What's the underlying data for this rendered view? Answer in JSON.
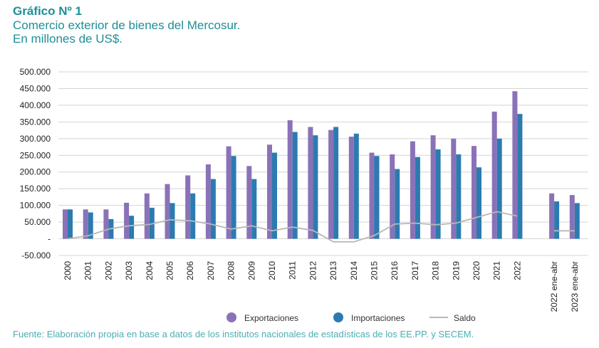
{
  "header": {
    "label": "Gráfico Nº 1",
    "title": "Comercio exterior de bienes del Mercosur.",
    "unit": "En millones de US$."
  },
  "source": "Fuente: Elaboración propia en base a datos de los institutos nacionales de estadísticas de los EE.PP. y SECEM.",
  "colors": {
    "exportaciones": "#8a72b8",
    "importaciones": "#2b7bb0",
    "saldo": "#b8b8b8",
    "grid": "#d4d4d4",
    "text": "#1e8f96"
  },
  "chart_data": {
    "type": "bar",
    "categories": [
      "2000",
      "2001",
      "2002",
      "2003",
      "2004",
      "2005",
      "2006",
      "2007",
      "2008",
      "2009",
      "2010",
      "2011",
      "2012",
      "2013",
      "2014",
      "2015",
      "2016",
      "2017",
      "2018",
      "2019",
      "2020",
      "2021",
      "2022",
      "2022 ene-abr",
      "2023 ene-abr"
    ],
    "gap_after_index": 22,
    "series": [
      {
        "name": "Exportaciones",
        "type": "bar",
        "values": [
          88000,
          88000,
          88000,
          108000,
          136000,
          164000,
          190000,
          223000,
          277000,
          218000,
          282000,
          355000,
          335000,
          326000,
          306000,
          258000,
          253000,
          292000,
          310000,
          300000,
          278000,
          381000,
          442000,
          136000,
          131000
        ]
      },
      {
        "name": "Importaciones",
        "type": "bar",
        "values": [
          88000,
          79000,
          59000,
          69000,
          93000,
          107000,
          136000,
          179000,
          248000,
          179000,
          258000,
          320000,
          310000,
          335000,
          315000,
          248000,
          209000,
          245000,
          268000,
          253000,
          214000,
          300000,
          374000,
          112000,
          107000
        ]
      },
      {
        "name": "Saldo",
        "type": "line",
        "values": [
          0,
          9000,
          29000,
          39000,
          43000,
          57000,
          54000,
          44000,
          29000,
          39000,
          24000,
          35000,
          25000,
          -9000,
          -9000,
          10000,
          44000,
          47000,
          42000,
          47000,
          64000,
          81000,
          68000,
          24000,
          24000
        ]
      }
    ],
    "y_ticks": [
      "500.000",
      "450.000",
      "400.000",
      "350.000",
      "300.000",
      "250.000",
      "200.000",
      "150.000",
      "100.000",
      "50.000",
      "-",
      "-50.000"
    ],
    "ylim": [
      -50000,
      500000
    ],
    "grid": true,
    "legend_position": "bottom"
  }
}
